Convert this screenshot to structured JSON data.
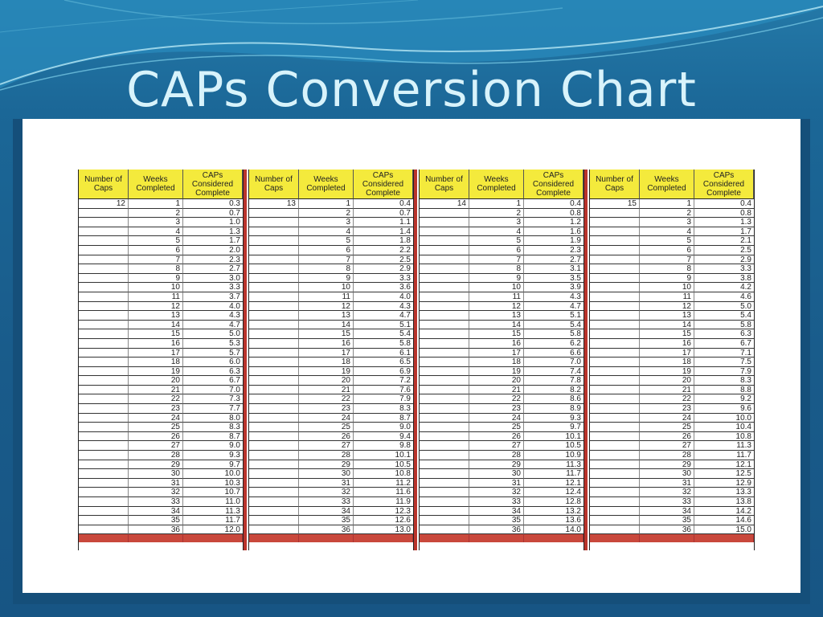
{
  "slide": {
    "title": "CAPs Conversion Chart",
    "colors": {
      "background": "#1b6797",
      "title": "#d8f3fb",
      "header": "#f4ea3c",
      "separator": "#c9483c"
    }
  },
  "table": {
    "headers": {
      "caps": [
        "Number of",
        "Caps"
      ],
      "weeks": [
        "Weeks",
        "Completed"
      ],
      "considered": [
        "CAPs",
        "Considered",
        "Complete"
      ]
    },
    "weeks": [
      "1",
      "2",
      "3",
      "4",
      "5",
      "6",
      "7",
      "8",
      "9",
      "10",
      "11",
      "12",
      "13",
      "14",
      "15",
      "16",
      "17",
      "18",
      "19",
      "20",
      "21",
      "22",
      "23",
      "24",
      "25",
      "26",
      "27",
      "28",
      "29",
      "30",
      "31",
      "32",
      "33",
      "34",
      "35",
      "36"
    ],
    "groups": [
      {
        "caps": "12",
        "values": [
          "0.3",
          "0.7",
          "1.0",
          "1.3",
          "1.7",
          "2.0",
          "2.3",
          "2.7",
          "3.0",
          "3.3",
          "3.7",
          "4.0",
          "4.3",
          "4.7",
          "5.0",
          "5.3",
          "5.7",
          "6.0",
          "6.3",
          "6.7",
          "7.0",
          "7.3",
          "7.7",
          "8.0",
          "8.3",
          "8.7",
          "9.0",
          "9.3",
          "9.7",
          "10.0",
          "10.3",
          "10.7",
          "11.0",
          "11.3",
          "11.7",
          "12.0"
        ]
      },
      {
        "caps": "13",
        "values": [
          "0.4",
          "0.7",
          "1.1",
          "1.4",
          "1.8",
          "2.2",
          "2.5",
          "2.9",
          "3.3",
          "3.6",
          "4.0",
          "4.3",
          "4.7",
          "5.1",
          "5.4",
          "5.8",
          "6.1",
          "6.5",
          "6.9",
          "7.2",
          "7.6",
          "7.9",
          "8.3",
          "8.7",
          "9.0",
          "9.4",
          "9.8",
          "10.1",
          "10.5",
          "10.8",
          "11.2",
          "11.6",
          "11.9",
          "12.3",
          "12.6",
          "13.0"
        ]
      },
      {
        "caps": "14",
        "values": [
          "0.4",
          "0.8",
          "1.2",
          "1.6",
          "1.9",
          "2.3",
          "2.7",
          "3.1",
          "3.5",
          "3.9",
          "4.3",
          "4.7",
          "5.1",
          "5.4",
          "5.8",
          "6.2",
          "6.6",
          "7.0",
          "7.4",
          "7.8",
          "8.2",
          "8.6",
          "8.9",
          "9.3",
          "9.7",
          "10.1",
          "10.5",
          "10.9",
          "11.3",
          "11.7",
          "12.1",
          "12.4",
          "12.8",
          "13.2",
          "13.6",
          "14.0"
        ]
      },
      {
        "caps": "15",
        "values": [
          "0.4",
          "0.8",
          "1.3",
          "1.7",
          "2.1",
          "2.5",
          "2.9",
          "3.3",
          "3.8",
          "4.2",
          "4.6",
          "5.0",
          "5.4",
          "5.8",
          "6.3",
          "6.7",
          "7.1",
          "7.5",
          "7.9",
          "8.3",
          "8.8",
          "9.2",
          "9.6",
          "10.0",
          "10.4",
          "10.8",
          "11.3",
          "11.7",
          "12.1",
          "12.5",
          "12.9",
          "13.3",
          "13.8",
          "14.2",
          "14.6",
          "15.0"
        ]
      }
    ]
  }
}
